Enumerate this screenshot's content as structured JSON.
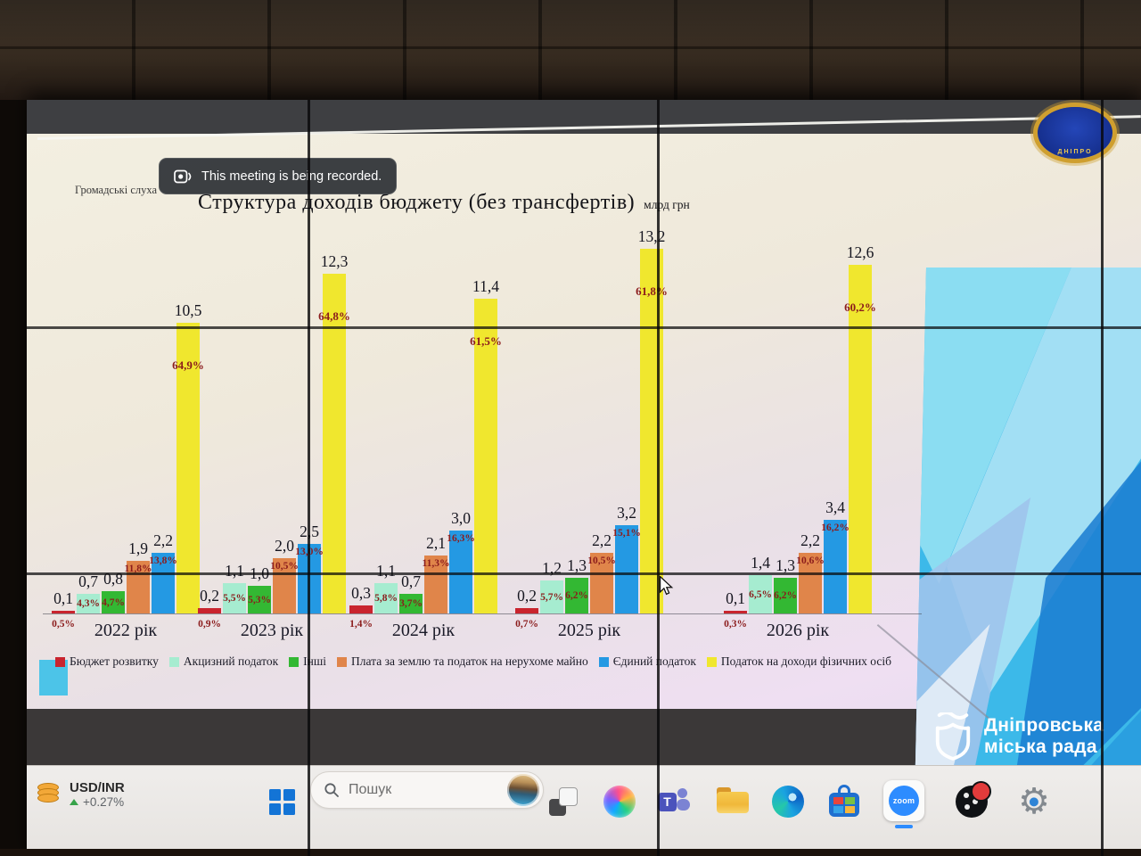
{
  "chart_data": {
    "type": "bar",
    "title": "Структура  доходів  бюджету  (без  трансфертів)",
    "unit": "млрд грн",
    "categories": [
      "2022 рік",
      "2023 рік",
      "2024 рік",
      "2025 рік",
      "2026 рік"
    ],
    "series": [
      {
        "name": "Бюджет розвитку",
        "color": "#c9242e",
        "values": [
          0.1,
          0.2,
          0.3,
          0.2,
          0.1
        ],
        "percent_labels": [
          "0,5%",
          "0,9%",
          "1,4%",
          "0,7%",
          "0,3%"
        ]
      },
      {
        "name": "Акцизний податок",
        "color": "#a6ecd0",
        "values": [
          0.7,
          1.1,
          1.1,
          1.2,
          1.4
        ],
        "percent_labels": [
          "4,3%",
          "5,5%",
          "5,8%",
          "5,7%",
          "6,5%"
        ]
      },
      {
        "name": "Інші",
        "color": "#33b833",
        "values": [
          0.8,
          1.0,
          0.7,
          1.3,
          1.3
        ],
        "percent_labels": [
          "4,7%",
          "5,3%",
          "3,7%",
          "6,2%",
          "6,2%"
        ]
      },
      {
        "name": "Плата за землю та податок на нерухоме майно",
        "color": "#e0854a",
        "values": [
          1.9,
          2.0,
          2.1,
          2.2,
          2.2
        ],
        "percent_labels": [
          "11,8%",
          "10,5%",
          "11,3%",
          "10,5%",
          "10,6%"
        ]
      },
      {
        "name": "Єдиний податок",
        "color": "#2499e3",
        "values": [
          2.2,
          2.5,
          3.0,
          3.2,
          3.4
        ],
        "percent_labels": [
          "13,8%",
          "13,0%",
          "16,3%",
          "15,1%",
          "16,2%"
        ]
      },
      {
        "name": "Податок на доходи фізичних осіб",
        "color": "#f0e72e",
        "values": [
          10.5,
          12.3,
          11.4,
          13.2,
          12.6
        ],
        "percent_labels": [
          "64,9%",
          "64,8%",
          "61,5%",
          "61,8%",
          "60,2%"
        ]
      }
    ],
    "legend_position": "bottom",
    "ylim": [
      0,
      14
    ],
    "grid": false
  },
  "slide": {
    "corner_text": "Громадські слуха"
  },
  "toast": {
    "text": "This meeting is being recorded."
  },
  "emblem": {
    "caption": "ДНІПРО"
  },
  "taskbar": {
    "widget": {
      "pair": "USD/INR",
      "change": "+0.27%"
    },
    "search_placeholder": "Пошук",
    "zoom_label": "zoom",
    "icons": [
      "start",
      "search",
      "task-view",
      "copilot",
      "teams",
      "file-explorer",
      "edge",
      "microsoft-store",
      "zoom",
      "obs-studio",
      "settings"
    ]
  },
  "branding": {
    "line1": "Дніпровська",
    "line2": "міська рада"
  }
}
